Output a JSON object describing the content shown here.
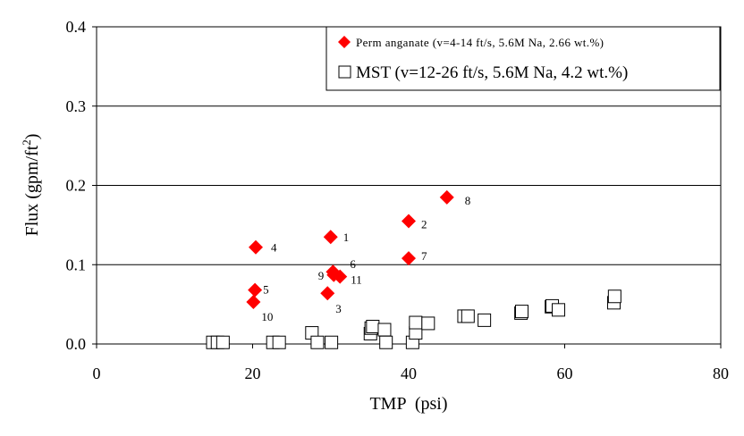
{
  "chart_data": {
    "type": "scatter",
    "title": "",
    "xlabel": "TMP  (psi)",
    "ylabel_main": "Flux (gpm/ft",
    "ylabel_sup": "2",
    "ylabel_close": ")",
    "xlim": [
      0,
      80
    ],
    "ylim": [
      0,
      0.4
    ],
    "xticks": [
      "0",
      "20",
      "40",
      "60",
      "80"
    ],
    "yticks": [
      "0.0",
      "0.1",
      "0.2",
      "0.3",
      "0.4"
    ],
    "grid": "horizontal",
    "legend_position": "top-right",
    "series": [
      {
        "name": "Perm anganate (v=4-14 ft/s, 5.6M Na, 2.66 wt.%)",
        "marker": "diamond",
        "color": "#ff0000",
        "points": [
          {
            "x": 30.0,
            "y": 0.135,
            "label": "1"
          },
          {
            "x": 40.0,
            "y": 0.155,
            "label": "2"
          },
          {
            "x": 29.6,
            "y": 0.064,
            "label": "3"
          },
          {
            "x": 20.4,
            "y": 0.122,
            "label": "4"
          },
          {
            "x": 20.3,
            "y": 0.068,
            "label": "5"
          },
          {
            "x": 30.3,
            "y": 0.091,
            "label": "6"
          },
          {
            "x": 40.0,
            "y": 0.108,
            "label": "7"
          },
          {
            "x": 44.9,
            "y": 0.185,
            "label": "8"
          },
          {
            "x": 30.4,
            "y": 0.087,
            "label": "9"
          },
          {
            "x": 20.1,
            "y": 0.053,
            "label": "10"
          },
          {
            "x": 31.2,
            "y": 0.085,
            "label": "11"
          }
        ]
      },
      {
        "name": "MST (v=12-26 ft/s, 5.6M Na, 4.2 wt.%)",
        "marker": "square-open",
        "color": "#000000",
        "points": [
          {
            "x": 14.9,
            "y": 0.002
          },
          {
            "x": 15.5,
            "y": 0.002
          },
          {
            "x": 16.2,
            "y": 0.002
          },
          {
            "x": 22.6,
            "y": 0.002
          },
          {
            "x": 23.4,
            "y": 0.002
          },
          {
            "x": 27.6,
            "y": 0.014
          },
          {
            "x": 28.3,
            "y": 0.002
          },
          {
            "x": 30.1,
            "y": 0.002
          },
          {
            "x": 35.1,
            "y": 0.013
          },
          {
            "x": 35.2,
            "y": 0.02
          },
          {
            "x": 35.4,
            "y": 0.022
          },
          {
            "x": 36.9,
            "y": 0.018
          },
          {
            "x": 37.1,
            "y": 0.002
          },
          {
            "x": 40.5,
            "y": 0.002
          },
          {
            "x": 40.9,
            "y": 0.014
          },
          {
            "x": 40.9,
            "y": 0.027
          },
          {
            "x": 42.5,
            "y": 0.026
          },
          {
            "x": 47.1,
            "y": 0.035
          },
          {
            "x": 47.6,
            "y": 0.035
          },
          {
            "x": 49.7,
            "y": 0.03
          },
          {
            "x": 54.4,
            "y": 0.039
          },
          {
            "x": 54.5,
            "y": 0.041
          },
          {
            "x": 58.3,
            "y": 0.047
          },
          {
            "x": 58.4,
            "y": 0.048
          },
          {
            "x": 59.2,
            "y": 0.043
          },
          {
            "x": 66.3,
            "y": 0.052
          },
          {
            "x": 66.4,
            "y": 0.06
          }
        ]
      }
    ]
  }
}
